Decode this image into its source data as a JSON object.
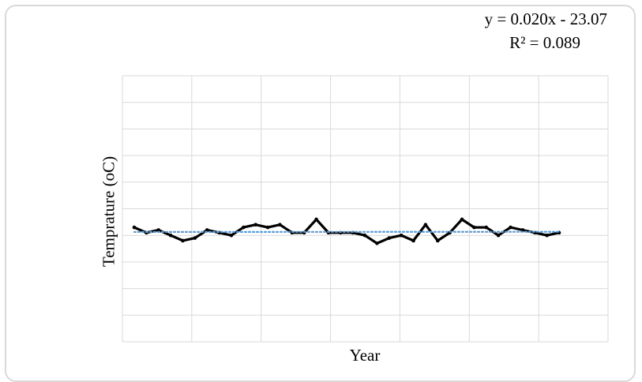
{
  "chart_data": {
    "type": "line",
    "title": "",
    "xlabel": "Year",
    "ylabel": "Temprature (oC)",
    "xlim": [
      0,
      36
    ],
    "grid": true,
    "series": [
      {
        "values": [
          0.43,
          0.41,
          0.42,
          0.4,
          0.38,
          0.39,
          0.42,
          0.41,
          0.4,
          0.43,
          0.44,
          0.43,
          0.44,
          0.41,
          0.41,
          0.46,
          0.41,
          0.41,
          0.41,
          0.4,
          0.37,
          0.39,
          0.4,
          0.38,
          0.44,
          0.38,
          0.41,
          0.46,
          0.43,
          0.43,
          0.4,
          0.43,
          0.42,
          0.41,
          0.4,
          0.41
        ]
      }
    ],
    "trendline": {
      "equation": "y = 0.020x - 23.07",
      "r2": "R² = 0.089",
      "color": "#5b9bd5",
      "style": "dotted"
    },
    "colors": {
      "series": "#000000",
      "grid": "#d9d9d9"
    }
  }
}
